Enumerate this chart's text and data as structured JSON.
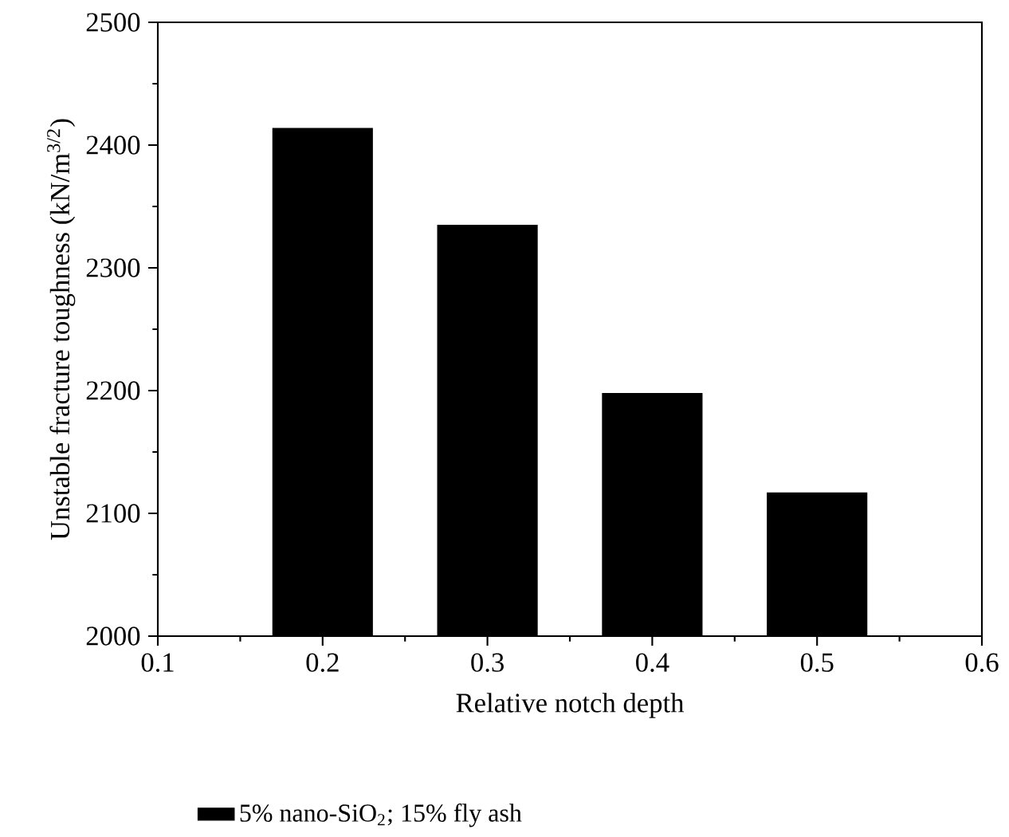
{
  "chart_data": {
    "type": "bar",
    "xlabel": "Relative notch depth",
    "ylabel": "Unstable fracture toughness (kN/m$^{3/2}$)",
    "x": [
      0.2,
      0.3,
      0.4,
      0.5
    ],
    "series": [
      {
        "name": "5% nano-SiO$_{2}$; 15% fly ash",
        "color": "#000000",
        "values": [
          2414,
          2335,
          2198,
          2117
        ]
      }
    ],
    "xlim": [
      0.1,
      0.6
    ],
    "xticks": [
      0.1,
      0.2,
      0.3,
      0.4,
      0.5,
      0.6
    ],
    "ylim": [
      2000,
      2500
    ],
    "yticks": [
      2000,
      2100,
      2200,
      2300,
      2400,
      2500
    ],
    "legend": "bottom",
    "grid": false
  }
}
